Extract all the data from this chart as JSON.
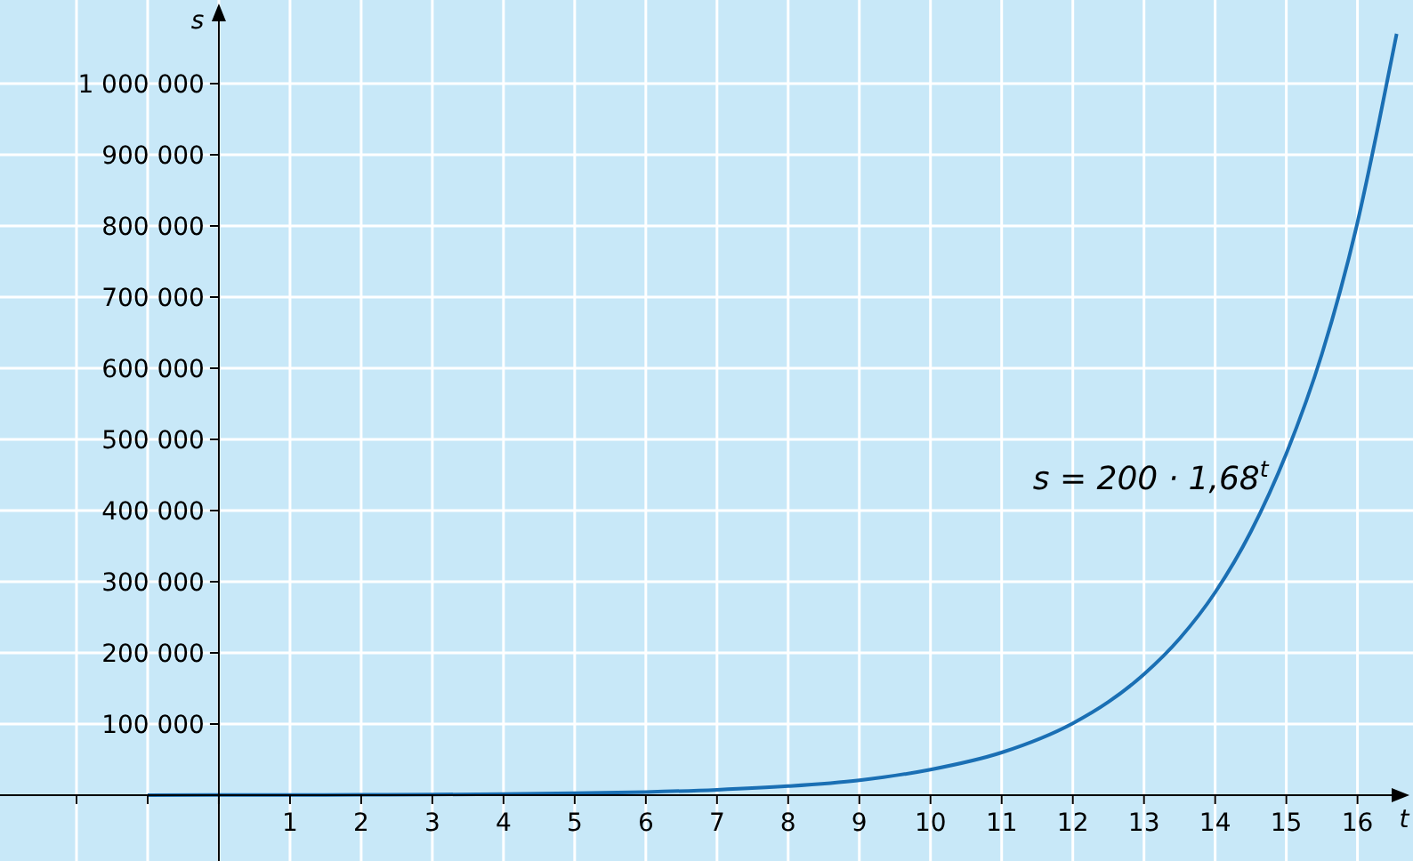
{
  "chart_data": {
    "type": "line",
    "xlabel": "t",
    "ylabel": "s",
    "x": [
      -1,
      0,
      1,
      2,
      3,
      4,
      5,
      6,
      7,
      8,
      9,
      10,
      11,
      12,
      12.5,
      13,
      13.5,
      14,
      14.5,
      15,
      15.5,
      16,
      16.3,
      16.55
    ],
    "series": [
      {
        "color": "#1a6fb4",
        "values": [
          100,
          200,
          300,
          600,
          900,
          1600,
          2700,
          4500,
          7600,
          12700,
          21000,
          36000,
          60000,
          101000,
          131000,
          170000,
          220000,
          285000,
          370000,
          480000,
          620000,
          805000,
          945000,
          1070000
        ]
      }
    ],
    "xlim": [
      -3,
      16.78
    ],
    "ylim": [
      -92500,
      1117500
    ],
    "xticks": [
      {
        "value": -2,
        "label": null
      },
      {
        "value": -1,
        "label": null
      },
      {
        "value": 0,
        "label": null
      },
      1,
      2,
      3,
      4,
      5,
      6,
      7,
      8,
      9,
      10,
      11,
      12,
      13,
      14,
      15,
      16
    ],
    "yticks": [
      {
        "value": 100000,
        "label": "100 000"
      },
      {
        "value": 200000,
        "label": "200 000"
      },
      {
        "value": 300000,
        "label": "300 000"
      },
      {
        "value": 400000,
        "label": "400 000"
      },
      {
        "value": 500000,
        "label": "500 000"
      },
      {
        "value": 600000,
        "label": "600 000"
      },
      {
        "value": 700000,
        "label": "700 000"
      },
      {
        "value": 800000,
        "label": "800 000"
      },
      {
        "value": 900000,
        "label": "900 000"
      },
      {
        "value": 1000000,
        "label": "1 000 000"
      }
    ],
    "grid": true,
    "marker": "none",
    "line_style": "solid",
    "annotations": [
      {
        "text": "s = 200 · 1,68$^{t}$",
        "x": 14.85,
        "y": 445000
      }
    ]
  }
}
